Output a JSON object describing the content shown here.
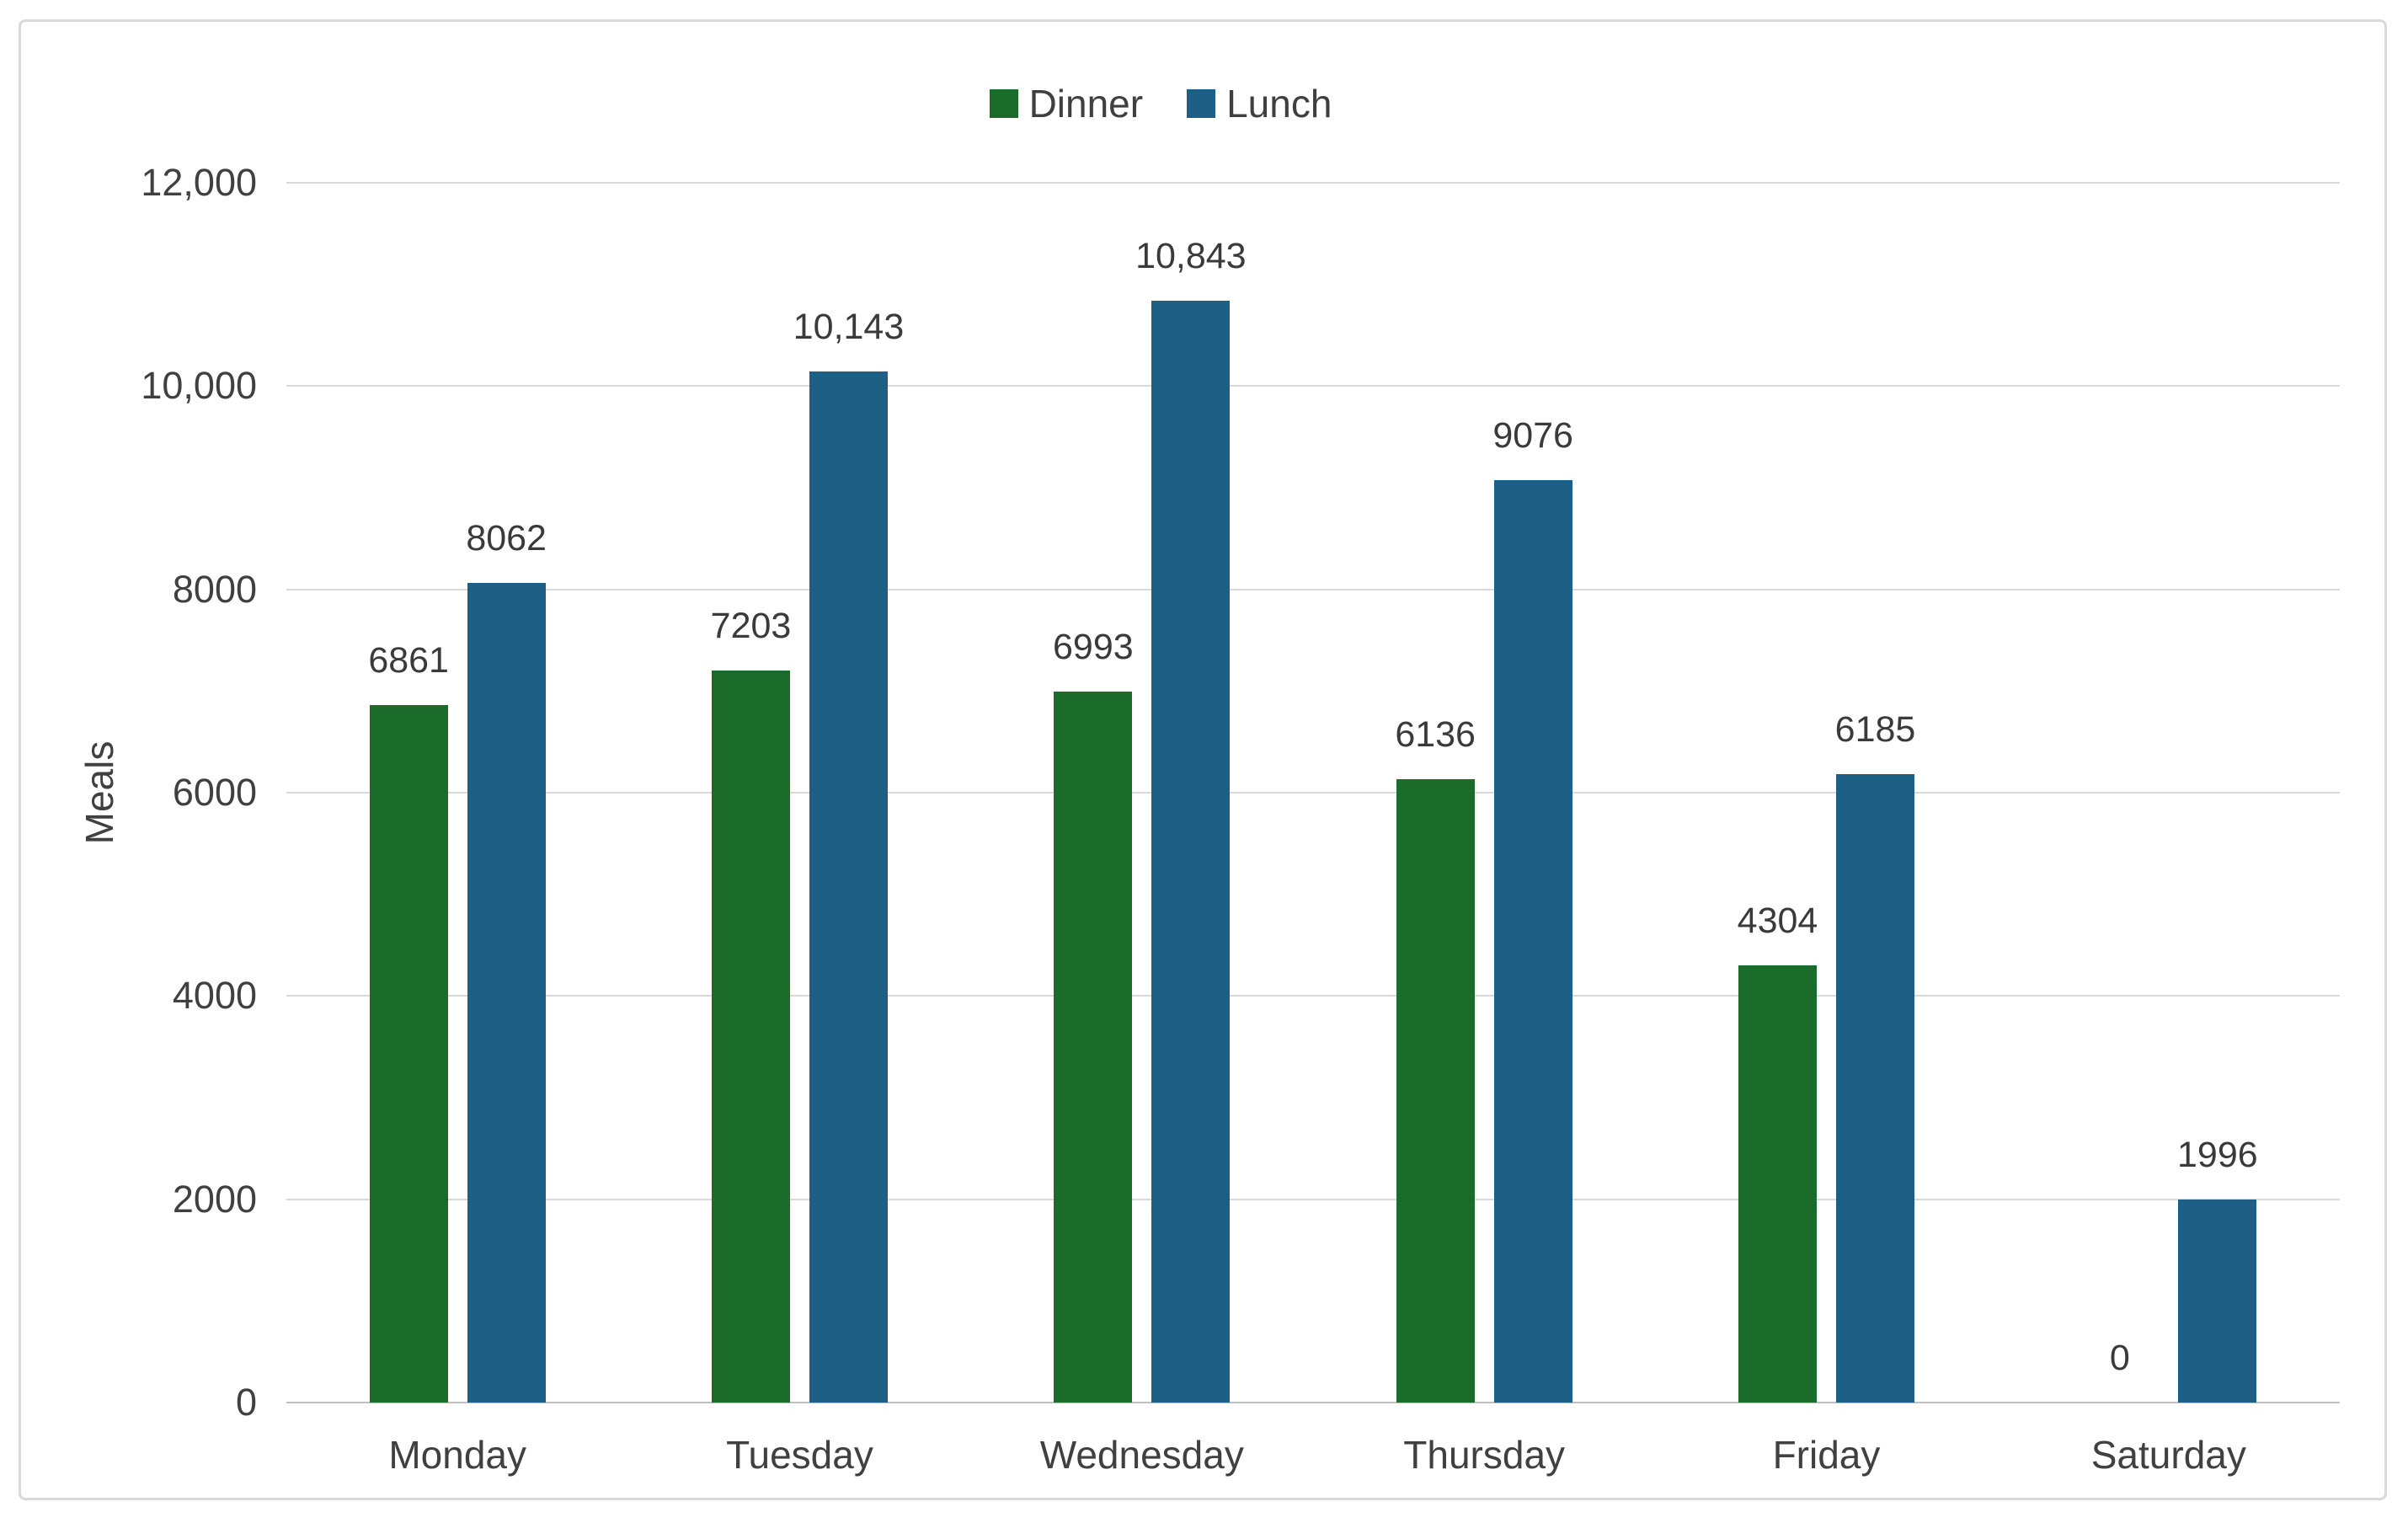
{
  "chart_data": {
    "type": "bar",
    "title": "",
    "xlabel": "",
    "ylabel": "Meals",
    "categories": [
      "Monday",
      "Tuesday",
      "Wednesday",
      "Thursday",
      "Friday",
      "Saturday"
    ],
    "series": [
      {
        "name": "Dinner",
        "color": "#1b6c2a",
        "values": [
          6861,
          7203,
          6993,
          6136,
          4304,
          0
        ],
        "labels": [
          "6861",
          "7203",
          "6993",
          "6136",
          "4304",
          "0"
        ]
      },
      {
        "name": "Lunch",
        "color": "#1e5f86",
        "values": [
          8062,
          10143,
          10843,
          9076,
          6185,
          1996
        ],
        "labels": [
          "8062",
          "10,143",
          "10,843",
          "9076",
          "6185",
          "1996"
        ]
      }
    ],
    "ylim": [
      0,
      12000
    ],
    "yticks": [
      {
        "value": 0,
        "label": "0"
      },
      {
        "value": 2000,
        "label": "2000"
      },
      {
        "value": 4000,
        "label": "4000"
      },
      {
        "value": 6000,
        "label": "6000"
      },
      {
        "value": 8000,
        "label": "8000"
      },
      {
        "value": 10000,
        "label": "10,000"
      },
      {
        "value": 12000,
        "label": "12,000"
      }
    ],
    "grid": true,
    "legend_position": "top-center",
    "bar_label_position": "outside-end",
    "colors": {
      "gridline": "#d9d9d9",
      "axis_line": "#bfbfbf",
      "frame_border": "#d9d9d9",
      "text": "#404040"
    }
  }
}
